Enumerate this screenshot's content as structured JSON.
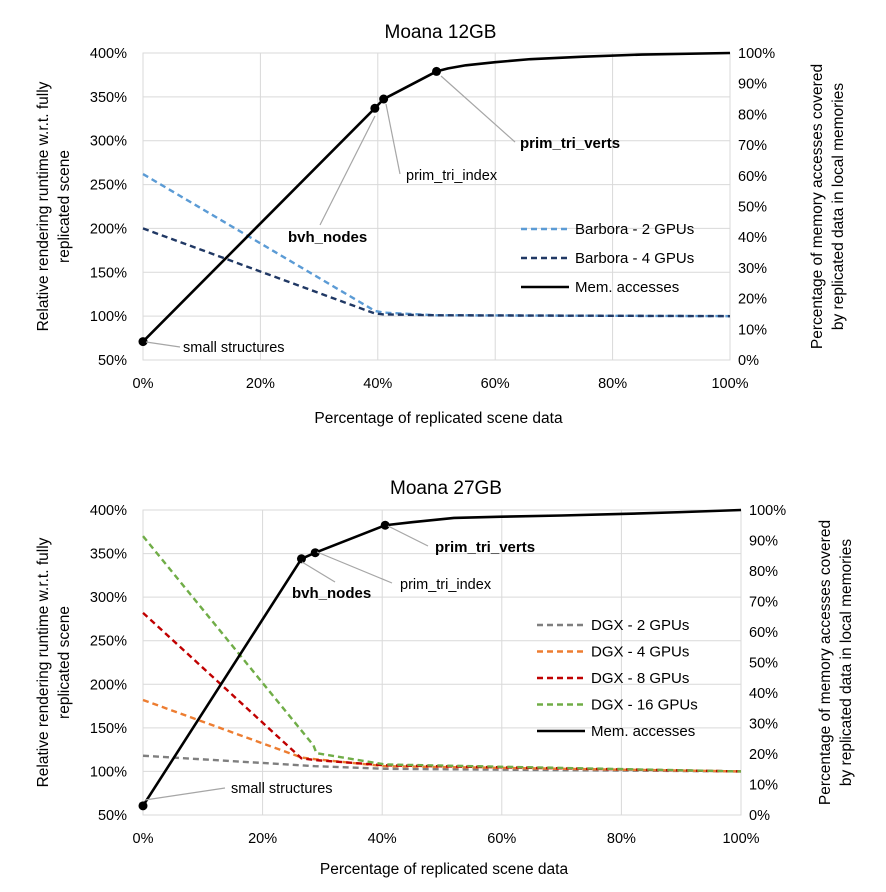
{
  "chart_data": [
    {
      "type": "line",
      "title": "Moana 12GB",
      "xlabel": "Percentage of replicated scene data",
      "ylabel_left": [
        "Relative rendering runtime w.r.t. fully",
        "replicated scene"
      ],
      "ylabel_right": [
        "Percentage of memory accesses covered",
        "by replicated data in local memories"
      ],
      "xlim": [
        0,
        100
      ],
      "ylim_left": [
        50,
        400
      ],
      "ylim_right": [
        0,
        100
      ],
      "x_ticks": [
        "0%",
        "20%",
        "40%",
        "60%",
        "80%",
        "100%"
      ],
      "y_left_ticks": [
        "50%",
        "100%",
        "150%",
        "200%",
        "250%",
        "300%",
        "350%",
        "400%"
      ],
      "y_right_ticks": [
        "0%",
        "10%",
        "20%",
        "30%",
        "40%",
        "50%",
        "60%",
        "70%",
        "80%",
        "90%",
        "100%"
      ],
      "grid": true,
      "legend_placement": "right",
      "series": [
        {
          "name": "Barbora - 2 GPUs",
          "axis": "left",
          "style": "dashed",
          "color": "#5b9bd5",
          "x": [
            0,
            39.5,
            41,
            50,
            100
          ],
          "y": [
            262,
            106,
            104,
            101,
            100
          ]
        },
        {
          "name": "Barbora - 4 GPUs",
          "axis": "left",
          "style": "dashed",
          "color": "#203864",
          "x": [
            0,
            39.5,
            41,
            50,
            100
          ],
          "y": [
            200,
            103,
            102,
            101,
            100
          ]
        },
        {
          "name": "Mem. accesses",
          "axis": "right",
          "style": "solid",
          "color": "#000000",
          "x": [
            0,
            39.5,
            41,
            50,
            52,
            55,
            60,
            66,
            75,
            85,
            100
          ],
          "y": [
            6,
            82,
            85,
            94,
            95,
            96,
            97,
            98,
            98.8,
            99.5,
            100
          ]
        }
      ],
      "markers": [
        {
          "x": 0,
          "y": 6
        },
        {
          "x": 39.5,
          "y": 82
        },
        {
          "x": 41,
          "y": 85
        },
        {
          "x": 50,
          "y": 94
        }
      ],
      "annotations": [
        {
          "text": "small structures",
          "bold": false
        },
        {
          "text": "bvh_nodes",
          "bold": true
        },
        {
          "text": "prim_tri_index",
          "bold": false
        },
        {
          "text": "prim_tri_verts",
          "bold": true
        }
      ]
    },
    {
      "type": "line",
      "title": "Moana 27GB",
      "xlabel": "Percentage of replicated scene data",
      "ylabel_left": [
        "Relative rendering runtime w.r.t. fully",
        "replicated scene"
      ],
      "ylabel_right": [
        "Percentage of memory accesses covered",
        "by replicated data in local memories"
      ],
      "xlim": [
        0,
        100
      ],
      "ylim_left": [
        50,
        400
      ],
      "ylim_right": [
        0,
        100
      ],
      "x_ticks": [
        "0%",
        "20%",
        "40%",
        "60%",
        "80%",
        "100%"
      ],
      "y_left_ticks": [
        "50%",
        "100%",
        "150%",
        "200%",
        "250%",
        "300%",
        "350%",
        "400%"
      ],
      "y_right_ticks": [
        "0%",
        "10%",
        "20%",
        "30%",
        "40%",
        "50%",
        "60%",
        "70%",
        "80%",
        "90%",
        "100%"
      ],
      "grid": true,
      "legend_placement": "right",
      "series": [
        {
          "name": "DGX - 2 GPUs",
          "axis": "left",
          "style": "dashed",
          "color": "#7f7f7f",
          "x": [
            0,
            26.5,
            28.8,
            40.5,
            100
          ],
          "y": [
            118,
            107,
            106,
            103,
            100
          ]
        },
        {
          "name": "DGX - 4 GPUs",
          "axis": "left",
          "style": "dashed",
          "color": "#ed7d31",
          "x": [
            0,
            26.5,
            28.8,
            40.5,
            100
          ],
          "y": [
            182,
            116,
            114,
            106,
            100
          ]
        },
        {
          "name": "DGX - 8 GPUs",
          "axis": "left",
          "style": "dashed",
          "color": "#c00000",
          "x": [
            0,
            26.5,
            28.8,
            40.5,
            100
          ],
          "y": [
            282,
            115,
            113,
            107,
            100
          ]
        },
        {
          "name": "DGX - 16 GPUs",
          "axis": "left",
          "style": "dashed",
          "color": "#70ad47",
          "x": [
            0,
            28.5,
            29,
            40.5,
            100
          ],
          "y": [
            370,
            130,
            121,
            108,
            100
          ]
        },
        {
          "name": "Mem. accesses",
          "axis": "right",
          "style": "solid",
          "color": "#000000",
          "x": [
            0,
            26.5,
            28.8,
            40.5,
            45,
            52,
            60,
            70,
            80,
            90,
            100
          ],
          "y": [
            3,
            84,
            86,
            95,
            96,
            97.4,
            97.8,
            98.2,
            98.7,
            99.3,
            100
          ]
        }
      ],
      "markers": [
        {
          "x": 0,
          "y": 3
        },
        {
          "x": 26.5,
          "y": 84
        },
        {
          "x": 28.8,
          "y": 86
        },
        {
          "x": 40.5,
          "y": 95
        }
      ],
      "annotations": [
        {
          "text": "small structures",
          "bold": false
        },
        {
          "text": "bvh_nodes",
          "bold": true
        },
        {
          "text": "prim_tri_index",
          "bold": false
        },
        {
          "text": "prim_tri_verts",
          "bold": true
        }
      ]
    }
  ]
}
